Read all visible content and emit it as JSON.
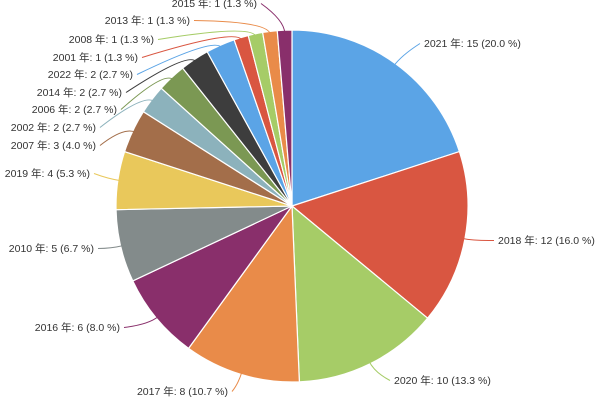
{
  "chart_data": {
    "type": "pie",
    "slices": [
      {
        "label": "2021 年: 15 (20.0 %)",
        "value": 15,
        "color": "#5BA4E6"
      },
      {
        "label": "2018 年: 12 (16.0 %)",
        "value": 12,
        "color": "#D95641"
      },
      {
        "label": "2020 年: 10 (13.3 %)",
        "value": 10,
        "color": "#A6CC67"
      },
      {
        "label": "2017 年: 8 (10.7 %)",
        "value": 8,
        "color": "#E98B49"
      },
      {
        "label": "2016 年: 6 (8.0 %)",
        "value": 6,
        "color": "#892F6B"
      },
      {
        "label": "2010 年: 5 (6.7 %)",
        "value": 5,
        "color": "#838B8B"
      },
      {
        "label": "2019 年: 4 (5.3 %)",
        "value": 4,
        "color": "#E9C85B"
      },
      {
        "label": "2007 年: 3 (4.0 %)",
        "value": 3,
        "color": "#A36E4A"
      },
      {
        "label": "2002 年: 2 (2.7 %)",
        "value": 2,
        "color": "#8CB2BC"
      },
      {
        "label": "2006 年: 2 (2.7 %)",
        "value": 2,
        "color": "#7B9853"
      },
      {
        "label": "2014 年: 2 (2.7 %)",
        "value": 2,
        "color": "#3D3D3D"
      },
      {
        "label": "2022 年: 2 (2.7 %)",
        "value": 2,
        "color": "#5BA4E6"
      },
      {
        "label": "2001 年: 1 (1.3 %)",
        "value": 1,
        "color": "#D95641"
      },
      {
        "label": "2008 年: 1 (1.3 %)",
        "value": 1,
        "color": "#A6CC67"
      },
      {
        "label": "2013 年: 1 (1.3 %)",
        "value": 1,
        "color": "#E98B49"
      },
      {
        "label": "2015 年: 1 (1.3 %)",
        "value": 1,
        "color": "#892F6B"
      }
    ]
  }
}
